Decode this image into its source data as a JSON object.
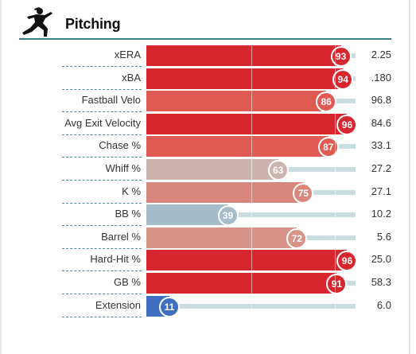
{
  "header": {
    "title": "Pitching",
    "icon": "pitcher-icon"
  },
  "chart_data": {
    "type": "bar",
    "orientation": "horizontal",
    "title": "Pitching",
    "xlim": [
      0,
      100
    ],
    "rows": [
      {
        "label": "xERA",
        "percentile": 93,
        "value": "2.25",
        "color": "#d8262f"
      },
      {
        "label": "xBA",
        "percentile": 94,
        "value": ".180",
        "color": "#d8262f"
      },
      {
        "label": "Fastball Velo",
        "percentile": 86,
        "value": "96.8",
        "color": "#df5a52"
      },
      {
        "label": "Avg Exit Velocity",
        "percentile": 96,
        "value": "84.6",
        "color": "#d8262f"
      },
      {
        "label": "Chase %",
        "percentile": 87,
        "value": "33.1",
        "color": "#df5a52"
      },
      {
        "label": "Whiff %",
        "percentile": 63,
        "value": "27.2",
        "color": "#cdb3ad"
      },
      {
        "label": "K %",
        "percentile": 75,
        "value": "27.1",
        "color": "#d9877c"
      },
      {
        "label": "BB %",
        "percentile": 39,
        "value": "10.2",
        "color": "#a5bccb"
      },
      {
        "label": "Barrel %",
        "percentile": 72,
        "value": "5.6",
        "color": "#d99489"
      },
      {
        "label": "Hard-Hit %",
        "percentile": 96,
        "value": "25.0",
        "color": "#d8262f"
      },
      {
        "label": "GB %",
        "percentile": 91,
        "value": "58.3",
        "color": "#d8262f"
      },
      {
        "label": "Extension",
        "percentile": 11,
        "value": "6.0",
        "color": "#3f6fc0"
      }
    ]
  }
}
